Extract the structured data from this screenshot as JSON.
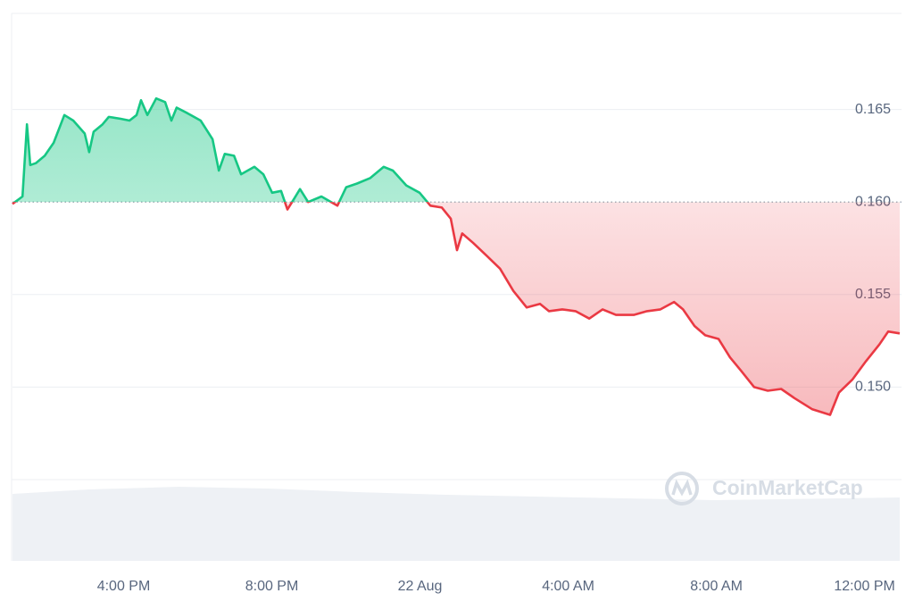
{
  "chart_data": {
    "type": "line",
    "x": [
      13.0,
      13.27,
      13.39,
      13.48,
      13.63,
      13.87,
      14.11,
      14.4,
      14.64,
      14.95,
      15.07,
      15.19,
      15.43,
      15.6,
      15.92,
      16.16,
      16.35,
      16.47,
      16.64,
      16.88,
      17.12,
      17.29,
      17.43,
      17.72,
      18.08,
      18.4,
      18.57,
      18.73,
      18.98,
      19.17,
      19.53,
      19.77,
      20.01,
      20.25,
      20.42,
      20.61,
      20.76,
      20.98,
      21.34,
      21.77,
      22.01,
      22.3,
      22.66,
      23.02,
      23.27,
      23.63,
      23.99,
      24.28,
      24.59,
      24.83,
      25.0,
      25.14,
      25.43,
      25.8,
      26.16,
      26.52,
      26.88,
      27.24,
      27.48,
      27.84,
      28.2,
      28.57,
      28.93,
      29.29,
      29.77,
      30.13,
      30.49,
      30.86,
      31.1,
      31.41,
      31.7,
      32.06,
      32.37,
      32.66,
      33.02,
      33.39,
      33.75,
      34.11,
      34.59,
      35.07,
      35.31,
      35.67,
      36.04,
      36.4,
      36.64,
      36.95
    ],
    "series": [
      {
        "values": [
          0.1599,
          0.1603,
          0.1642,
          0.162,
          0.1621,
          0.1625,
          0.1632,
          0.1647,
          0.1644,
          0.1637,
          0.1627,
          0.1638,
          0.1642,
          0.1646,
          0.1645,
          0.1644,
          0.1647,
          0.1655,
          0.1647,
          0.1656,
          0.1654,
          0.1644,
          0.1651,
          0.1648,
          0.1644,
          0.1634,
          0.1617,
          0.1626,
          0.1625,
          0.1615,
          0.1619,
          0.1615,
          0.1605,
          0.1606,
          0.1596,
          0.1602,
          0.1607,
          0.16,
          0.1603,
          0.1598,
          0.1608,
          0.161,
          0.1613,
          0.1619,
          0.1617,
          0.1609,
          0.1605,
          0.1598,
          0.1597,
          0.1591,
          0.1574,
          0.1583,
          0.1578,
          0.1571,
          0.1564,
          0.1552,
          0.1543,
          0.1545,
          0.1541,
          0.1542,
          0.1541,
          0.1537,
          0.1542,
          0.1539,
          0.1539,
          0.1541,
          0.1542,
          0.1546,
          0.1542,
          0.1533,
          0.1528,
          0.1526,
          0.1516,
          0.1509,
          0.15,
          0.1498,
          0.1499,
          0.1494,
          0.1488,
          0.1485,
          0.1497,
          0.1504,
          0.1514,
          0.1523,
          0.153,
          0.1529
        ]
      }
    ],
    "baseline": 0.16,
    "up_color": "#16c784",
    "down_color": "#ea3943",
    "xlim": [
      13,
      36.95
    ],
    "xticks": [
      {
        "value": 16,
        "label": "4:00 PM"
      },
      {
        "value": 20,
        "label": "8:00 PM"
      },
      {
        "value": 24,
        "label": "22 Aug"
      },
      {
        "value": 28,
        "label": "4:00 AM"
      },
      {
        "value": 32,
        "label": "8:00 AM"
      },
      {
        "value": 36,
        "label": "12:00 PM"
      }
    ],
    "ylim": [
      0.145,
      0.17
    ],
    "yticks": [
      {
        "value": 0.15,
        "label": "0.150"
      },
      0.155,
      {
        "value": 0.16,
        "label": "0.160"
      },
      0.165
    ],
    "grid": true,
    "watermark": "CoinMarketCap"
  }
}
